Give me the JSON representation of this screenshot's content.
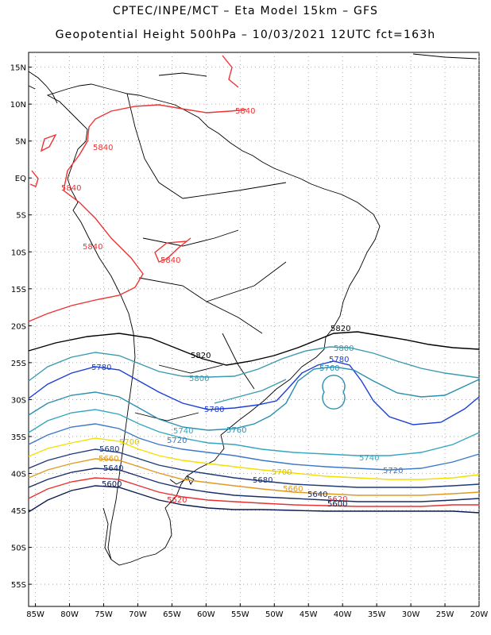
{
  "title_line1": "CPTEC/INPE/MCT –  Eta Model 15km – GFS",
  "title_line2": "Geopotential Height 500hPa – 10/03/2021 12UTC fct=163h",
  "map": {
    "lon_range": [
      -86,
      -20
    ],
    "lat_range": [
      -58,
      17
    ],
    "lat_ticks": [
      "15N",
      "10N",
      "5N",
      "EQ",
      "5S",
      "10S",
      "15S",
      "20S",
      "25S",
      "30S",
      "35S",
      "40S",
      "45S",
      "50S",
      "55S"
    ],
    "lat_tick_values": [
      15,
      10,
      5,
      0,
      -5,
      -10,
      -15,
      -20,
      -25,
      -30,
      -35,
      -40,
      -45,
      -50,
      -55
    ],
    "lon_ticks": [
      "85W",
      "80W",
      "75W",
      "70W",
      "65W",
      "60W",
      "55W",
      "50W",
      "45W",
      "40W",
      "35W",
      "30W",
      "25W",
      "20W"
    ],
    "lon_tick_values": [
      -85,
      -80,
      -75,
      -70,
      -65,
      -60,
      -55,
      -50,
      -45,
      -40,
      -35,
      -30,
      -25,
      -20
    ],
    "grid": true
  },
  "contours": [
    {
      "level": "5840",
      "color": "#ee3333"
    },
    {
      "level": "5820",
      "color": "#000000"
    },
    {
      "level": "5800",
      "color": "#3a9ab0"
    },
    {
      "level": "5780",
      "color": "#1c3fd8"
    },
    {
      "level": "5760",
      "color": "#2a8fb0"
    },
    {
      "level": "5740",
      "color": "#35a6bf"
    },
    {
      "level": "5720",
      "color": "#3b78c8"
    },
    {
      "level": "5700",
      "color": "#f2e000"
    },
    {
      "level": "5680",
      "color": "#1e3a78"
    },
    {
      "level": "5660",
      "color": "#e09a20"
    },
    {
      "level": "5640",
      "color": "#1a2e6a"
    },
    {
      "level": "5620",
      "color": "#e83030"
    },
    {
      "level": "5600",
      "color": "#0c1a50"
    }
  ],
  "contour_labels": {
    "l5840a": "5840",
    "l5840b": "5840",
    "l5840c": "5840",
    "l5840d": "5840",
    "l5840e": "5840",
    "l5820a": "5820",
    "l5820b": "5820",
    "l5800a": "5800",
    "l5800b": "5800",
    "l5780a": "5780",
    "l5780b": "5780",
    "l5780c": "5780",
    "l5760a": "5760",
    "l5760b": "5760",
    "l5740a": "5740",
    "l5740b": "5740",
    "l5720a": "5720",
    "l5720b": "5720",
    "l5700a": "5700",
    "l5700b": "5700",
    "l5680a": "5680",
    "l5680b": "5680",
    "l5660a": "5660",
    "l5660b": "5660",
    "l5640a": "5640",
    "l5640b": "5640",
    "l5620a": "5620",
    "l5620b": "5620",
    "l5600a": "5600",
    "l5600b": "5600"
  }
}
